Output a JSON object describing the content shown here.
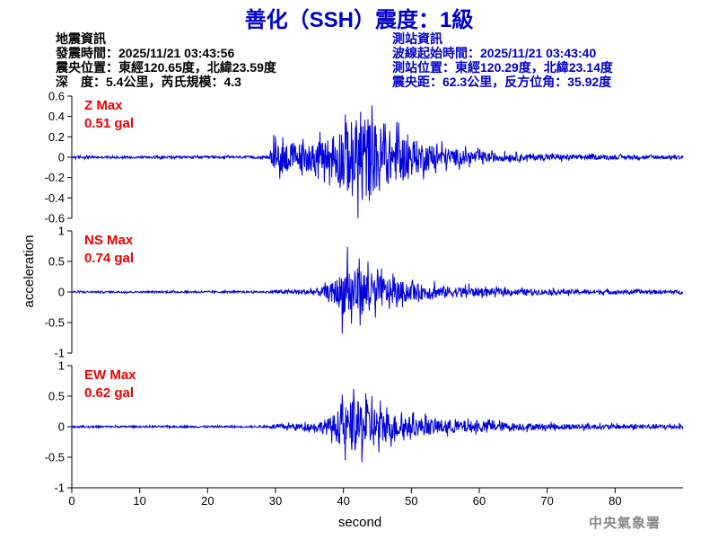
{
  "title": "善化（SSH）震度：1級",
  "quake_info": {
    "header": "地震資訊",
    "origin_time": "發震時間：2025/11/21 03:43:56",
    "epicenter": "震央位置：東經120.65度，北緯23.59度",
    "depth_magnitude": "深　度：5.4公里，芮氏規模：4.3"
  },
  "station_info": {
    "header": "測站資訊",
    "wave_start": "波線起始時間：2025/11/21 03:43:40",
    "station_location": "測站位置：東經120.29度，北緯23.14度",
    "distance_azimuth": "震央距：62.3公里，反方位角：35.92度"
  },
  "footer": "中央氣象署",
  "colors": {
    "trace": "#0000dd",
    "max_label": "#ee0000",
    "title": "#0000cc"
  },
  "chart_data": {
    "type": "line",
    "xlabel": "second",
    "ylabel": "acceleration",
    "xlim": [
      0,
      90
    ],
    "xticks": [
      "0",
      "10",
      "20",
      "30",
      "40",
      "50",
      "60",
      "70",
      "80"
    ],
    "panels": [
      {
        "component": "Z",
        "max_label": "Z Max",
        "max_value": "0.51 gal",
        "ylim": [
          -0.6,
          0.6
        ],
        "yticks": [
          "0.6",
          "0.4",
          "0.2",
          "0",
          "-0.2",
          "-0.4",
          "-0.6"
        ],
        "noise": 0.012,
        "envelope": [
          [
            0,
            0.012
          ],
          [
            29,
            0.012
          ],
          [
            29.5,
            0.12
          ],
          [
            31,
            0.16
          ],
          [
            34,
            0.14
          ],
          [
            36,
            0.14
          ],
          [
            38,
            0.2
          ],
          [
            40,
            0.34
          ],
          [
            42,
            0.38
          ],
          [
            43,
            0.44
          ],
          [
            44,
            0.38
          ],
          [
            45,
            0.32
          ],
          [
            47,
            0.26
          ],
          [
            50,
            0.18
          ],
          [
            54,
            0.1
          ],
          [
            58,
            0.07
          ],
          [
            62,
            0.045
          ],
          [
            66,
            0.035
          ],
          [
            70,
            0.03
          ],
          [
            80,
            0.02
          ],
          [
            90,
            0.017
          ]
        ],
        "peaks": [
          [
            44.2,
            0.51
          ],
          [
            43.8,
            -0.43
          ],
          [
            42.8,
            -0.42
          ],
          [
            40.3,
            0.42
          ],
          [
            46.1,
            0.33
          ],
          [
            48.1,
            0.34
          ],
          [
            45.3,
            -0.33
          ],
          [
            41.3,
            -0.38
          ],
          [
            29.7,
            0.22
          ],
          [
            33.9,
            -0.18
          ],
          [
            54.5,
            0.16
          ],
          [
            53.6,
            -0.16
          ]
        ]
      },
      {
        "component": "NS",
        "max_label": "NS Max",
        "max_value": "0.74 gal",
        "ylim": [
          -1,
          1
        ],
        "yticks": [
          "1",
          "0.5",
          "0",
          "-0.5",
          "-1"
        ],
        "noise": 0.015,
        "envelope": [
          [
            0,
            0.015
          ],
          [
            29,
            0.015
          ],
          [
            30,
            0.03
          ],
          [
            33,
            0.04
          ],
          [
            36,
            0.06
          ],
          [
            38,
            0.12
          ],
          [
            39.5,
            0.28
          ],
          [
            40.5,
            0.45
          ],
          [
            41.5,
            0.42
          ],
          [
            43,
            0.36
          ],
          [
            45,
            0.28
          ],
          [
            47,
            0.2
          ],
          [
            50,
            0.14
          ],
          [
            54,
            0.1
          ],
          [
            58,
            0.08
          ],
          [
            62,
            0.06
          ],
          [
            66,
            0.05
          ],
          [
            70,
            0.045
          ],
          [
            80,
            0.035
          ],
          [
            90,
            0.03
          ]
        ],
        "peaks": [
          [
            40.6,
            0.74
          ],
          [
            39.8,
            -0.68
          ],
          [
            41.2,
            -0.52
          ],
          [
            42.3,
            0.55
          ],
          [
            43.6,
            0.5
          ],
          [
            44.7,
            -0.42
          ],
          [
            45.6,
            0.38
          ],
          [
            47.3,
            0.3
          ],
          [
            50.2,
            0.2
          ],
          [
            53.4,
            0.18
          ],
          [
            58.5,
            0.14
          ]
        ]
      },
      {
        "component": "EW",
        "max_label": "EW Max",
        "max_value": "0.62 gal",
        "ylim": [
          -1,
          1
        ],
        "yticks": [
          "1",
          "0.5",
          "0",
          "-0.5",
          "-1"
        ],
        "noise": 0.015,
        "envelope": [
          [
            0,
            0.015
          ],
          [
            29,
            0.015
          ],
          [
            30,
            0.04
          ],
          [
            33,
            0.05
          ],
          [
            36,
            0.07
          ],
          [
            38,
            0.15
          ],
          [
            39.5,
            0.3
          ],
          [
            40.5,
            0.4
          ],
          [
            41.5,
            0.42
          ],
          [
            43,
            0.4
          ],
          [
            45,
            0.32
          ],
          [
            47,
            0.22
          ],
          [
            50,
            0.16
          ],
          [
            54,
            0.12
          ],
          [
            58,
            0.1
          ],
          [
            62,
            0.08
          ],
          [
            66,
            0.06
          ],
          [
            70,
            0.05
          ],
          [
            80,
            0.04
          ],
          [
            90,
            0.04
          ]
        ],
        "peaks": [
          [
            41.5,
            0.62
          ],
          [
            43.3,
            0.55
          ],
          [
            40.3,
            -0.55
          ],
          [
            42.7,
            -0.58
          ],
          [
            44.2,
            0.5
          ],
          [
            45.2,
            -0.42
          ],
          [
            46.4,
            0.32
          ],
          [
            39.6,
            0.38
          ],
          [
            48.6,
            0.24
          ],
          [
            52.2,
            0.18
          ],
          [
            55.3,
            -0.16
          ],
          [
            61.5,
            0.12
          ]
        ]
      }
    ]
  }
}
